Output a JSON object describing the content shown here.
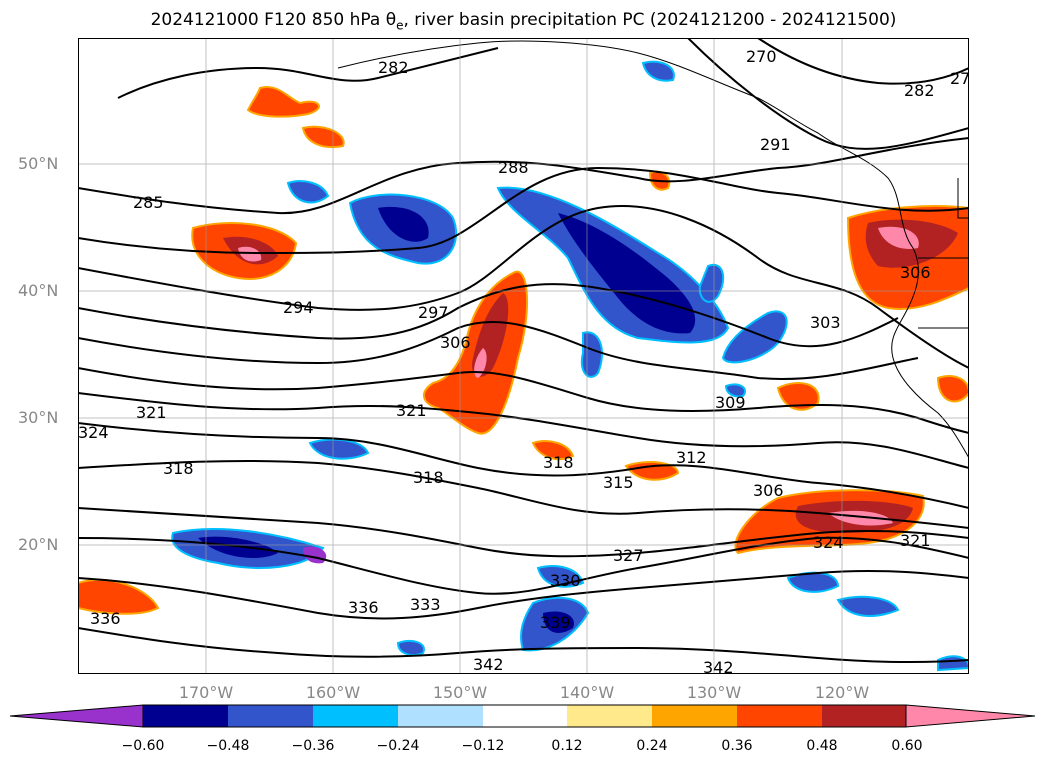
{
  "title": {
    "prefix": "2024121000 F120 850 hPa θ",
    "sub": "e",
    "suffix": ", river basin precipitation PC (2024121200 - 2024121500)"
  },
  "map": {
    "lat_labels": [
      "50°N",
      "40°N",
      "30°N",
      "20°N"
    ],
    "lon_labels": [
      "170°W",
      "160°W",
      "150°W",
      "140°W",
      "130°W",
      "120°W"
    ],
    "contour_labels": [
      "285",
      "288",
      "294",
      "297",
      "306",
      "321",
      "321",
      "324",
      "318",
      "318",
      "318",
      "315",
      "312",
      "309",
      "306",
      "327",
      "324",
      "321",
      "330",
      "336",
      "333",
      "336",
      "339",
      "342",
      "342",
      "291",
      "282",
      "270",
      "27",
      "303",
      "306",
      "282"
    ]
  },
  "colorbar": {
    "ticks": [
      "−0.60",
      "−0.48",
      "−0.36",
      "−0.24",
      "−0.12",
      "0.12",
      "0.24",
      "0.36",
      "0.48",
      "0.60"
    ],
    "colors": [
      "#9932cc",
      "#000090",
      "#3355cc",
      "#00bfff",
      "#b0e0ff",
      "#ffffff",
      "#ffe98a",
      "#ffa500",
      "#ff4500",
      "#b22222",
      "#ff88aa"
    ],
    "extend_low_color": "#9932cc",
    "extend_high_color": "#ff88aa"
  }
}
